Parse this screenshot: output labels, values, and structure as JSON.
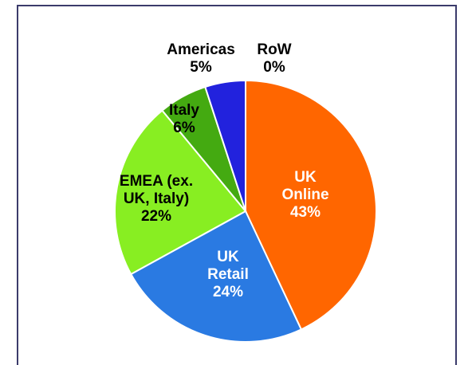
{
  "chart_data": {
    "type": "pie",
    "categories": [
      "UK Online",
      "UK Retail",
      "EMEA (ex. UK, Italy)",
      "Italy",
      "Americas",
      "RoW"
    ],
    "values": [
      43,
      24,
      22,
      6,
      5,
      0
    ],
    "value_labels": [
      "43%",
      "24%",
      "22%",
      "6%",
      "5%",
      "0%"
    ],
    "colors": [
      "#ff6600",
      "#2a7ae2",
      "#88ee22",
      "#44aa11",
      "#2222dd",
      "#999999"
    ]
  }
}
